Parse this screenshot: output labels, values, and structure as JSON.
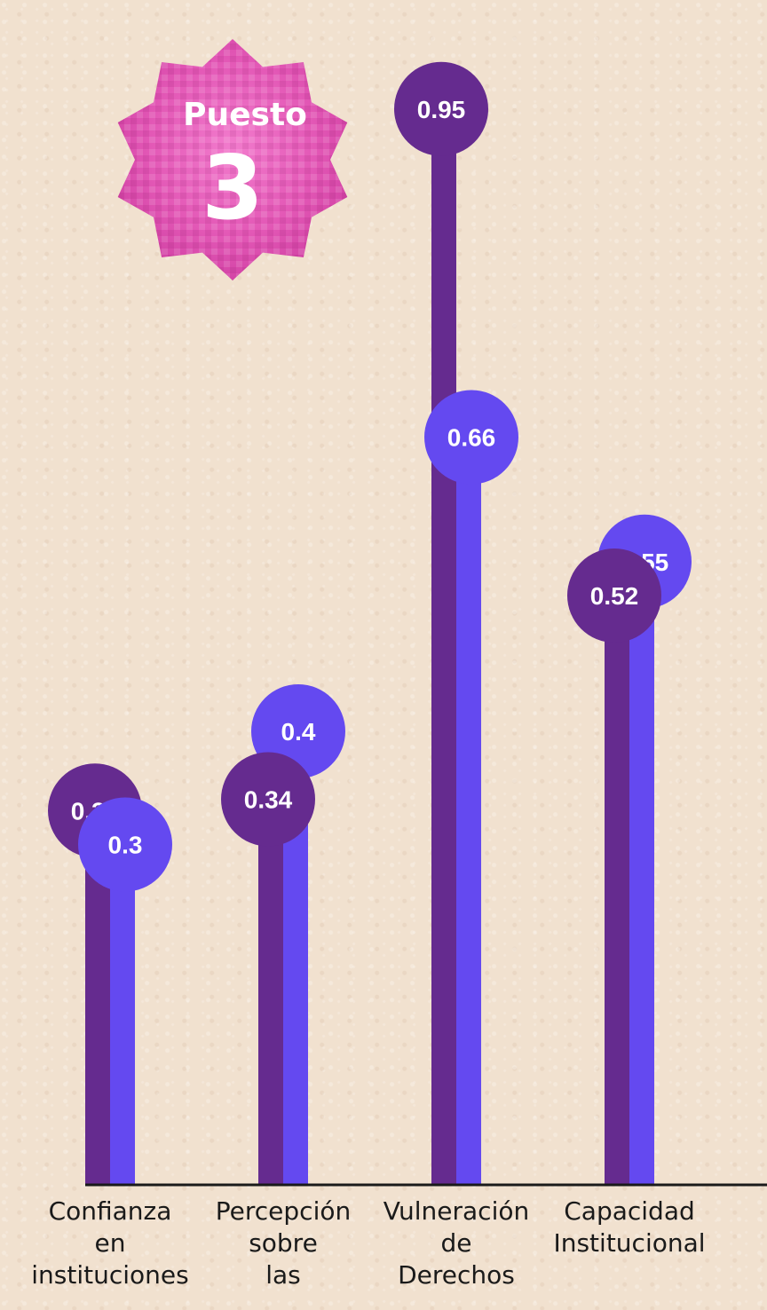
{
  "badge": {
    "label": "Puesto",
    "number": "3"
  },
  "colors": {
    "series_a": "#652b8f",
    "series_b": "#6449f0",
    "badge": "#e45ab8",
    "axis": "#1a1a1a"
  },
  "chart_data": {
    "type": "lollipop",
    "categories": [
      [
        "Confianza",
        "en",
        "instituciones"
      ],
      [
        "Percepción",
        "sobre",
        "las"
      ],
      [
        "Vulneración",
        "de",
        "Derechos"
      ],
      [
        "Capacidad",
        "Institucional"
      ]
    ],
    "series": [
      {
        "values": [
          0.33,
          0.34,
          0.95,
          0.52
        ]
      },
      {
        "values": [
          0.3,
          0.4,
          0.66,
          0.55
        ]
      }
    ],
    "ylim": [
      0,
      1
    ]
  }
}
